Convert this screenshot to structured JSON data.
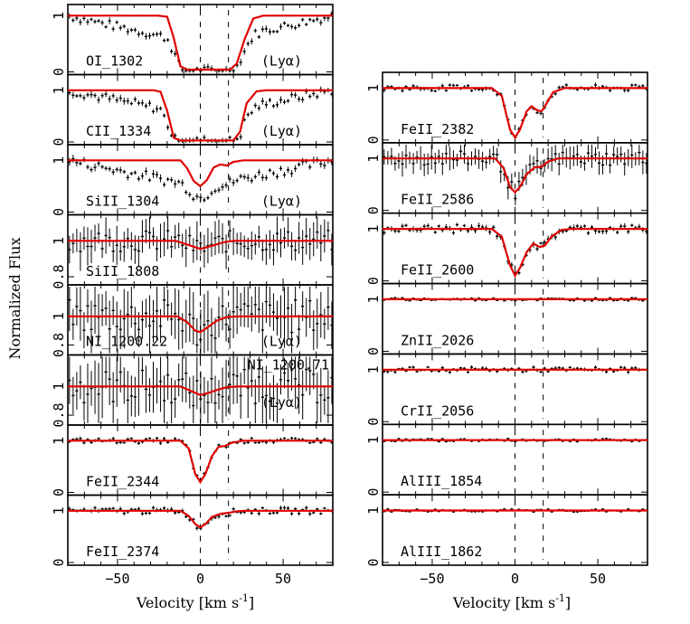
{
  "figure": {
    "ylabel": "Normalized Flux",
    "xlabel": "Velocity [km s",
    "xlabel_sup": "-1",
    "xlabel_close": "]"
  },
  "chart_data": {
    "type": "line",
    "x_range": [
      -80,
      80
    ],
    "x_ticks": [
      -50,
      0,
      50
    ],
    "x_tick_labels": [
      "−50",
      "0",
      "50"
    ],
    "dashed_markers_velocity": [
      0,
      17
    ],
    "model_color": "#e00000",
    "data_color": "#000000",
    "columns": [
      {
        "panels": [
          {
            "label": "OI_1302",
            "tag": "(Lyα)",
            "ylim": [
              0,
              1.15
            ],
            "yticks": [
              0,
              1
            ],
            "yticklabels": [
              "0",
              "1"
            ],
            "model": [
              [
                -80,
                1
              ],
              [
                -25,
                1
              ],
              [
                -20,
                0.98
              ],
              [
                -16,
                0.6
              ],
              [
                -12,
                0.1
              ],
              [
                -8,
                0.04
              ],
              [
                18,
                0.04
              ],
              [
                22,
                0.15
              ],
              [
                27,
                0.6
              ],
              [
                32,
                0.95
              ],
              [
                38,
                1
              ],
              [
                80,
                1
              ]
            ],
            "data_mode": "wing",
            "data_noise": 0.08
          },
          {
            "label": "CII_1334",
            "tag": "(Lyα)",
            "ylim": [
              0,
              1.25
            ],
            "yticks": [
              0,
              1
            ],
            "yticklabels": [
              "0",
              "1"
            ],
            "model": [
              [
                -80,
                1
              ],
              [
                -28,
                1
              ],
              [
                -24,
                0.97
              ],
              [
                -20,
                0.6
              ],
              [
                -16,
                0.08
              ],
              [
                -12,
                0.03
              ],
              [
                20,
                0.03
              ],
              [
                24,
                0.2
              ],
              [
                28,
                0.75
              ],
              [
                34,
                0.98
              ],
              [
                40,
                1
              ],
              [
                80,
                1
              ]
            ],
            "data_mode": "wing",
            "data_noise": 0.09
          },
          {
            "label": "SiII_1304",
            "tag": "(Lyα)",
            "ylim": [
              0,
              1.25
            ],
            "yticks": [
              0,
              1
            ],
            "yticklabels": [
              "0",
              "1"
            ],
            "model": [
              [
                -80,
                1
              ],
              [
                -12,
                1
              ],
              [
                -8,
                0.85
              ],
              [
                -4,
                0.6
              ],
              [
                0,
                0.5
              ],
              [
                4,
                0.62
              ],
              [
                8,
                0.86
              ],
              [
                12,
                0.92
              ],
              [
                16,
                0.9
              ],
              [
                20,
                0.97
              ],
              [
                26,
                1
              ],
              [
                80,
                1
              ]
            ],
            "data_mode": "wing",
            "data_noise": 0.1
          },
          {
            "label": "SiII_1808",
            "tag": "",
            "ylim": [
              0.77,
              1.13
            ],
            "yticks": [
              0.8,
              1
            ],
            "yticklabels": [
              "0.8",
              "1"
            ],
            "model": [
              [
                -80,
                1
              ],
              [
                -15,
                1
              ],
              [
                -8,
                0.98
              ],
              [
                0,
                0.955
              ],
              [
                8,
                0.975
              ],
              [
                14,
                0.992
              ],
              [
                20,
                1
              ],
              [
                80,
                1
              ]
            ],
            "data_mode": "noisy",
            "data_noise": 0.06
          },
          {
            "label": "NI_1200.22",
            "tag": "(Lyα)",
            "ylim": [
              0.75,
              1.2
            ],
            "yticks": [
              0.8,
              1
            ],
            "yticklabels": [
              "0.8",
              "1"
            ],
            "model": [
              [
                -80,
                1
              ],
              [
                -14,
                1
              ],
              [
                -8,
                0.96
              ],
              [
                -3,
                0.9
              ],
              [
                0,
                0.89
              ],
              [
                4,
                0.92
              ],
              [
                10,
                0.97
              ],
              [
                16,
                0.995
              ],
              [
                24,
                1
              ],
              [
                80,
                1
              ]
            ],
            "data_mode": "noisy",
            "data_noise": 0.12
          },
          {
            "label": "NI_1200.71",
            "tag": "(Lyα)",
            "ylim": [
              0.75,
              1.2
            ],
            "yticks": [
              0.8,
              1
            ],
            "yticklabels": [
              "0.8",
              "1"
            ],
            "model": [
              [
                -80,
                1
              ],
              [
                -12,
                1
              ],
              [
                -6,
                0.97
              ],
              [
                0,
                0.94
              ],
              [
                5,
                0.955
              ],
              [
                10,
                0.975
              ],
              [
                16,
                0.995
              ],
              [
                24,
                1
              ],
              [
                80,
                1
              ]
            ],
            "data_mode": "noisy",
            "data_noise": 0.12
          },
          {
            "label": "FeII_2344",
            "tag": "",
            "ylim": [
              0,
              1.25
            ],
            "yticks": [
              0,
              1
            ],
            "yticklabels": [
              "0",
              "1"
            ],
            "model": [
              [
                -80,
                1
              ],
              [
                -12,
                1
              ],
              [
                -7,
                0.85
              ],
              [
                -3,
                0.35
              ],
              [
                0,
                0.2
              ],
              [
                3,
                0.35
              ],
              [
                7,
                0.7
              ],
              [
                11,
                0.88
              ],
              [
                15,
                0.9
              ],
              [
                19,
                0.96
              ],
              [
                26,
                1
              ],
              [
                80,
                1
              ]
            ],
            "data_mode": "tight",
            "data_noise": 0.05
          },
          {
            "label": "FeII_2374",
            "tag": "",
            "ylim": [
              0,
              1.25
            ],
            "yticks": [
              0,
              1
            ],
            "yticklabels": [
              "0",
              "1"
            ],
            "model": [
              [
                -80,
                1
              ],
              [
                -12,
                1
              ],
              [
                -7,
                0.9
              ],
              [
                -3,
                0.74
              ],
              [
                0,
                0.68
              ],
              [
                3,
                0.74
              ],
              [
                7,
                0.88
              ],
              [
                12,
                0.94
              ],
              [
                17,
                0.96
              ],
              [
                22,
                0.99
              ],
              [
                28,
                1
              ],
              [
                80,
                1
              ]
            ],
            "data_mode": "tight",
            "data_noise": 0.06
          }
        ]
      },
      {
        "panels": [
          {
            "label": "FeII_2382",
            "tag": "",
            "ylim": [
              0,
              1.25
            ],
            "yticks": [
              0,
              1
            ],
            "yticklabels": [
              "0",
              "1"
            ],
            "model": [
              [
                -80,
                1
              ],
              [
                -14,
                1
              ],
              [
                -8,
                0.85
              ],
              [
                -3,
                0.2
              ],
              [
                0,
                0.05
              ],
              [
                3,
                0.2
              ],
              [
                7,
                0.55
              ],
              [
                10,
                0.65
              ],
              [
                13,
                0.58
              ],
              [
                16,
                0.55
              ],
              [
                19,
                0.7
              ],
              [
                23,
                0.92
              ],
              [
                30,
                1
              ],
              [
                80,
                1
              ]
            ],
            "data_mode": "tight",
            "data_noise": 0.06
          },
          {
            "label": "FeII_2586",
            "tag": "",
            "ylim": [
              0,
              1.25
            ],
            "yticks": [
              0,
              1
            ],
            "yticklabels": [
              "0",
              "1"
            ],
            "model": [
              [
                -80,
                1
              ],
              [
                -12,
                1
              ],
              [
                -7,
                0.82
              ],
              [
                -3,
                0.45
              ],
              [
                0,
                0.35
              ],
              [
                3,
                0.45
              ],
              [
                7,
                0.7
              ],
              [
                12,
                0.83
              ],
              [
                16,
                0.84
              ],
              [
                20,
                0.94
              ],
              [
                26,
                1
              ],
              [
                80,
                1
              ]
            ],
            "data_mode": "noisy",
            "data_noise": 0.14
          },
          {
            "label": "FeII_2600",
            "tag": "",
            "ylim": [
              0,
              1.25
            ],
            "yticks": [
              0,
              1
            ],
            "yticklabels": [
              "0",
              "1"
            ],
            "model": [
              [
                -80,
                1
              ],
              [
                -14,
                1
              ],
              [
                -8,
                0.85
              ],
              [
                -3,
                0.3
              ],
              [
                0,
                0.1
              ],
              [
                3,
                0.25
              ],
              [
                7,
                0.55
              ],
              [
                11,
                0.72
              ],
              [
                15,
                0.65
              ],
              [
                18,
                0.68
              ],
              [
                22,
                0.85
              ],
              [
                28,
                0.98
              ],
              [
                34,
                1
              ],
              [
                80,
                1
              ]
            ],
            "data_mode": "tight",
            "data_noise": 0.08
          },
          {
            "label": "ZnII_2026",
            "tag": "",
            "ylim": [
              0,
              1.25
            ],
            "yticks": [
              0,
              1
            ],
            "yticklabels": [
              "0",
              "1"
            ],
            "model": [
              [
                -80,
                1
              ],
              [
                80,
                1
              ]
            ],
            "data_mode": "tight",
            "data_noise": 0.03
          },
          {
            "label": "CrII_2056",
            "tag": "",
            "ylim": [
              0,
              1.25
            ],
            "yticks": [
              0,
              1
            ],
            "yticklabels": [
              "0",
              "1"
            ],
            "model": [
              [
                -80,
                1
              ],
              [
                80,
                1
              ]
            ],
            "data_mode": "tight",
            "data_noise": 0.05
          },
          {
            "label": "AlIII_1854",
            "tag": "",
            "ylim": [
              0,
              1.25
            ],
            "yticks": [
              0,
              1
            ],
            "yticklabels": [
              "0",
              "1"
            ],
            "model": [
              [
                -80,
                1
              ],
              [
                80,
                1
              ]
            ],
            "data_mode": "tight",
            "data_noise": 0.03
          },
          {
            "label": "AlIII_1862",
            "tag": "",
            "ylim": [
              0,
              1.25
            ],
            "yticks": [
              0,
              1
            ],
            "yticklabels": [
              "0",
              "1"
            ],
            "model": [
              [
                -80,
                1
              ],
              [
                80,
                1
              ]
            ],
            "data_mode": "tight",
            "data_noise": 0.03
          }
        ]
      }
    ]
  }
}
